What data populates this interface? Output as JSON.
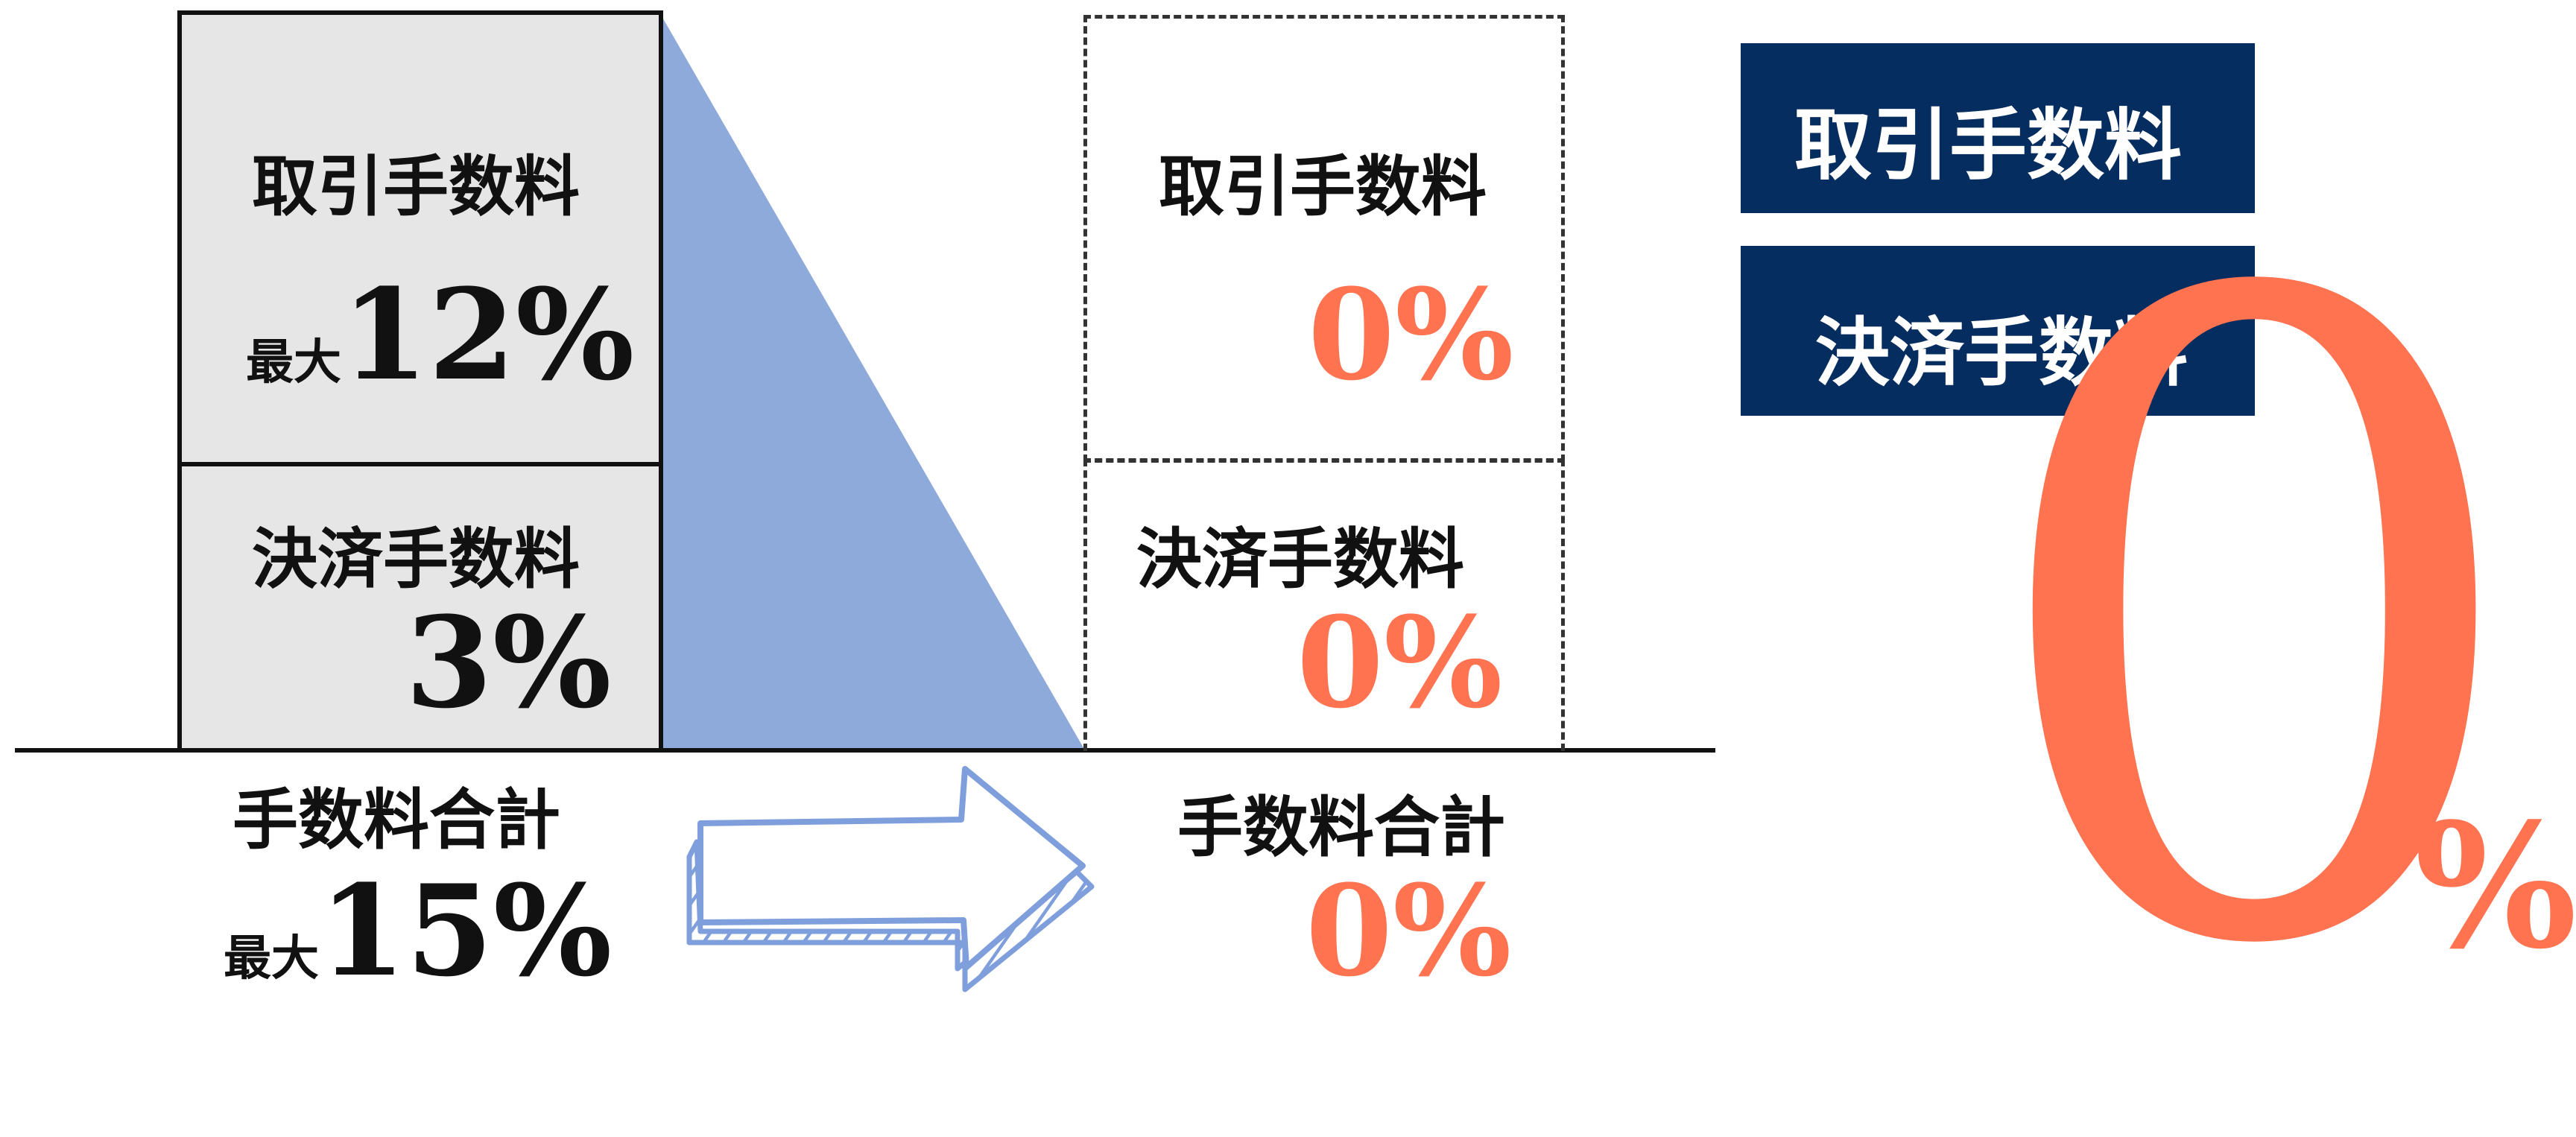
{
  "before": {
    "transaction_fee": {
      "label": "取引手数料",
      "prefix": "最大",
      "value": "12%"
    },
    "settlement_fee": {
      "label": "決済手数料",
      "value": "3%"
    },
    "total": {
      "label": "手数料合計",
      "prefix": "最大",
      "value": "15%"
    }
  },
  "after": {
    "transaction_fee": {
      "label": "取引手数料",
      "value": "0%"
    },
    "settlement_fee": {
      "label": "決済手数料",
      "value": "0%"
    },
    "total": {
      "label": "手数料合計",
      "value": "0%"
    }
  },
  "badges": [
    "取引手数料",
    "決済手数料"
  ],
  "big_zero": {
    "digit": "0",
    "percent": "%"
  },
  "colors": {
    "accent_orange": "#ff7351",
    "navy": "#062d5f",
    "triangle_blue": "#8eaadb",
    "box_gray": "#e6e6e6"
  }
}
